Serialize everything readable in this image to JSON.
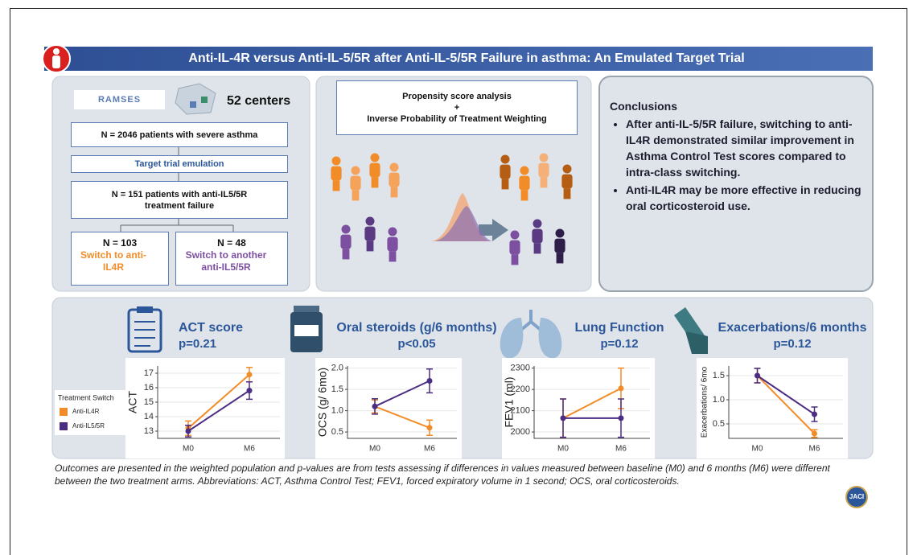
{
  "header": {
    "title": "Anti-IL-4R versus Anti-IL-5/5R after Anti-IL-5/5R Failure in asthma: An Emulated Target Trial"
  },
  "design": {
    "logo": "RAMSES",
    "centers": "52 centers",
    "population": "N = 2046 patients with severe asthma",
    "method": "Target trial emulation",
    "failure": "N = 151 patients  with anti-IL5/5R treatment failure",
    "arm_a": {
      "n": "N = 103",
      "label": "Switch to anti-IL4R"
    },
    "arm_b": {
      "n": "N = 48",
      "label": "Switch to  another anti-IL5/5R"
    }
  },
  "analysis": {
    "line1": "Propensity score analysis",
    "line2": "+",
    "line3": "Inverse Probability of Treatment Weighting"
  },
  "conclusions": {
    "title": "Conclusions",
    "bullets": [
      "After anti-IL-5/5R failure, switching to anti-IL4R demonstrated similar improvement in Asthma Control Test scores compared to intra-class switching.",
      "Anti-IL4R may be more effective in reducing oral corticosteroid use."
    ]
  },
  "chart_data": [
    {
      "type": "line",
      "title": "ACT score",
      "subtitle": "p=0.21",
      "y_label": "ACT",
      "categories": [
        "M0",
        "M6"
      ],
      "ylim": [
        12.5,
        17.5
      ],
      "yticks": [
        13,
        14,
        15,
        16,
        17
      ],
      "legend_title": "Treatment Switch",
      "grid": true,
      "series": [
        {
          "name": "Anti-IL4R",
          "color": "#f28c28",
          "values": [
            13.2,
            16.9
          ],
          "errors": [
            0.5,
            0.5
          ]
        },
        {
          "name": "Anti-IL5/5R",
          "color": "#4b2e83",
          "values": [
            13.0,
            15.8
          ],
          "errors": [
            0.4,
            0.6
          ]
        }
      ]
    },
    {
      "type": "line",
      "title": "Oral steroids (g/6 months)",
      "subtitle": "p<0.05",
      "y_label": "OCS (g/ 6mo)",
      "categories": [
        "M0",
        "M6"
      ],
      "ylim": [
        0.35,
        2.05
      ],
      "yticks": [
        0.5,
        {
          "value": 1,
          "label": "1.0"
        },
        1.5,
        {
          "value": 2,
          "label": "2.0"
        }
      ],
      "grid": true,
      "series": [
        {
          "color": "#f28c28",
          "values": [
            1.1,
            0.6
          ],
          "errors": [
            0.15,
            0.18
          ]
        },
        {
          "color": "#4b2e83",
          "values": [
            1.1,
            1.7
          ],
          "errors": [
            0.18,
            0.28
          ]
        }
      ]
    },
    {
      "type": "line",
      "title": "Lung Function",
      "subtitle": "p=0.12",
      "y_label": "FEV1 (ml)",
      "categories": [
        "M0",
        "M6"
      ],
      "ylim": [
        1970,
        2310
      ],
      "yticks": [
        2000,
        2100,
        2200,
        2300
      ],
      "grid": true,
      "series": [
        {
          "color": "#f28c28",
          "values": [
            2065,
            2205
          ],
          "errors": [
            90,
            95
          ]
        },
        {
          "color": "#4b2e83",
          "values": [
            2065,
            2065
          ],
          "errors": [
            90,
            90
          ]
        }
      ]
    },
    {
      "type": "line",
      "title": "Exacerbations/6 months",
      "subtitle": "p=0.12",
      "y_label": "Exacerbations/ 6mo",
      "categories": [
        "M0",
        "M6"
      ],
      "ylim": [
        0.2,
        1.7
      ],
      "yticks": [
        0.5,
        {
          "value": 1,
          "label": "1.0"
        },
        1.5
      ],
      "grid": true,
      "series": [
        {
          "color": "#f28c28",
          "values": [
            1.5,
            0.3
          ],
          "errors": [
            0.15,
            0.08
          ]
        },
        {
          "color": "#4b2e83",
          "values": [
            1.5,
            0.7
          ],
          "errors": [
            0.15,
            0.15
          ]
        }
      ]
    }
  ],
  "caption": "Outcomes are presented in the weighted population and p-values are from tests assessing if differences in values measured between baseline (M0) and 6 months (M6) were different between the two treatment arms. Abbreviations: ACT, Asthma Control Test; FEV1, forced  expiratory volume in 1 second; OCS, oral corticosteroids.",
  "journal": "JACI"
}
